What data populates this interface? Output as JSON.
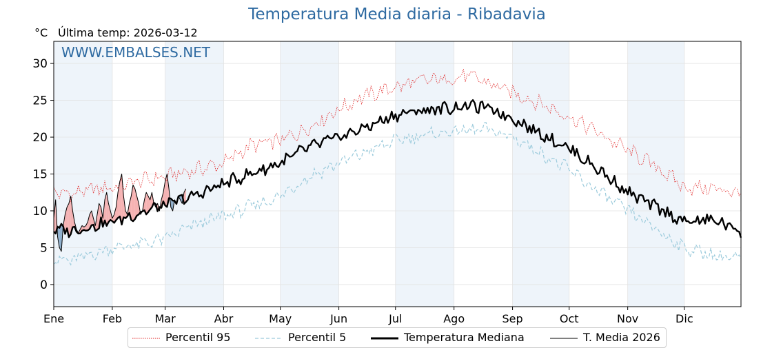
{
  "header": {
    "title": "Temperatura Media diaria - Ribadavia",
    "unit": "°C",
    "last_temp": "Última temp: 2026-03-12"
  },
  "watermark": "WWW.EMBALSES.NET",
  "legend": {
    "p95": "Percentil 95",
    "p5": "Percentil 5",
    "median": "Temperatura Mediana",
    "current": "T. Media 2026"
  },
  "colors": {
    "title": "#2e6aa1",
    "p95": "#e02020",
    "p5": "#9ccbdc",
    "median": "#000000",
    "above_fill": "#f4a6a6",
    "below_fill": "#7fa3c4",
    "month_band": "#eef4fa"
  },
  "chart_data": {
    "type": "line",
    "title": "Temperatura Media diaria - Ribadavia",
    "ylabel": "°C",
    "ylim": [
      -3,
      33
    ],
    "yticks": [
      0,
      5,
      10,
      15,
      20,
      25,
      30
    ],
    "xlim": [
      1,
      365
    ],
    "grid": true,
    "legend_position": "bottom",
    "month_labels": [
      "Ene",
      "Feb",
      "Mar",
      "Abr",
      "May",
      "Jun",
      "Jul",
      "Ago",
      "Sep",
      "Oct",
      "Nov",
      "Dic"
    ],
    "month_start_days": [
      1,
      32,
      60,
      91,
      121,
      152,
      182,
      213,
      244,
      274,
      305,
      335
    ],
    "shaded_months": [
      0,
      2,
      4,
      6,
      8,
      10
    ],
    "series": [
      {
        "name": "Percentil 95",
        "style": "dotted",
        "x": [
          1,
          10,
          20,
          32,
          45,
          60,
          75,
          91,
          105,
          121,
          135,
          152,
          165,
          182,
          195,
          213,
          220,
          230,
          244,
          255,
          274,
          290,
          305,
          320,
          335,
          350,
          365
        ],
        "y": [
          12.5,
          12.3,
          12.8,
          13.2,
          14.0,
          14.6,
          15.5,
          16.5,
          18.8,
          19.5,
          21.2,
          23.8,
          25.5,
          26.8,
          27.6,
          28.0,
          28.3,
          27.5,
          26.0,
          25.0,
          22.8,
          20.5,
          18.2,
          16.0,
          13.2,
          13.0,
          12.5
        ]
      },
      {
        "name": "Percentil 5",
        "style": "dashed",
        "x": [
          1,
          10,
          20,
          32,
          45,
          60,
          75,
          91,
          105,
          121,
          135,
          152,
          165,
          182,
          195,
          213,
          230,
          244,
          255,
          274,
          290,
          305,
          320,
          335,
          350,
          365
        ],
        "y": [
          3.4,
          3.2,
          4.0,
          5.0,
          5.4,
          6.2,
          8.0,
          9.3,
          10.5,
          12.0,
          14.5,
          16.5,
          17.8,
          19.5,
          20.2,
          20.8,
          21.0,
          20.0,
          18.5,
          15.5,
          12.5,
          10.0,
          7.5,
          5.0,
          4.0,
          3.4
        ]
      },
      {
        "name": "Temperatura Mediana",
        "style": "bold",
        "x": [
          1,
          10,
          20,
          32,
          45,
          60,
          75,
          91,
          105,
          121,
          135,
          152,
          165,
          182,
          195,
          213,
          220,
          230,
          244,
          255,
          274,
          290,
          305,
          320,
          335,
          350,
          365
        ],
        "y": [
          7.5,
          7.3,
          7.8,
          8.5,
          9.6,
          10.8,
          12.0,
          13.7,
          15.0,
          16.5,
          18.5,
          20.0,
          21.2,
          23.0,
          23.6,
          24.0,
          24.3,
          24.0,
          22.6,
          21.0,
          18.5,
          15.5,
          12.5,
          10.5,
          8.5,
          8.8,
          7.3
        ]
      },
      {
        "name": "T. Media 2026",
        "style": "thin",
        "x": [
          1,
          2,
          3,
          4,
          5,
          6,
          7,
          8,
          9,
          10,
          11,
          12,
          13,
          14,
          15,
          16,
          17,
          18,
          19,
          20,
          21,
          22,
          23,
          24,
          25,
          26,
          27,
          28,
          29,
          30,
          31,
          32,
          33,
          34,
          35,
          36,
          37,
          38,
          39,
          40,
          41,
          42,
          43,
          44,
          45,
          46,
          47,
          48,
          49,
          50,
          51,
          52,
          53,
          54,
          55,
          56,
          57,
          58,
          59,
          60,
          61,
          62,
          63,
          64,
          65,
          66,
          67,
          68,
          69,
          70,
          71
        ],
        "y": [
          9.0,
          11.5,
          6.5,
          5.0,
          4.5,
          8.0,
          9.5,
          10.5,
          11.0,
          12.0,
          10.0,
          8.5,
          7.5,
          7.0,
          7.5,
          8.0,
          7.8,
          8.0,
          8.5,
          9.5,
          10.0,
          9.0,
          8.0,
          9.5,
          11.0,
          10.5,
          9.0,
          11.5,
          12.5,
          11.0,
          10.0,
          9.0,
          9.5,
          10.5,
          12.5,
          14.0,
          15.0,
          12.0,
          10.0,
          9.5,
          11.0,
          12.0,
          13.5,
          13.0,
          12.0,
          11.0,
          9.5,
          10.0,
          11.5,
          12.5,
          12.0,
          11.5,
          12.5,
          11.0,
          10.5,
          11.0,
          10.0,
          11.5,
          12.5,
          14.0,
          15.0,
          13.0,
          10.5,
          10.0,
          11.5,
          11.0,
          12.0,
          11.5,
          11.0,
          12.5,
          13.0
        ]
      }
    ]
  }
}
